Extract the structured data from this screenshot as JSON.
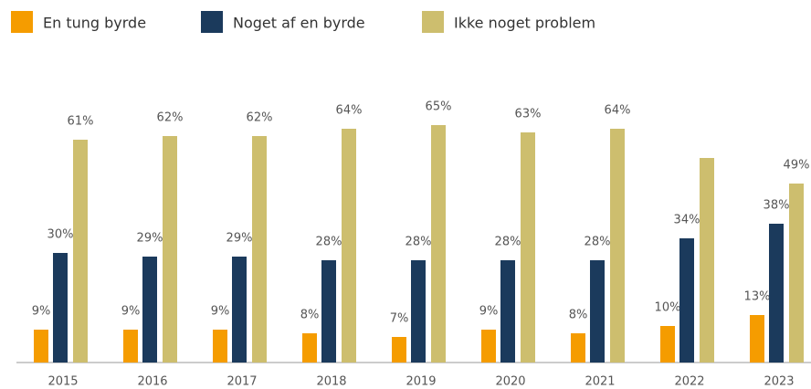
{
  "chart_data": {
    "type": "bar",
    "categories": [
      "2015",
      "2016",
      "2017",
      "2018",
      "2019",
      "2020",
      "2021",
      "2022",
      "2023"
    ],
    "series": [
      {
        "name": "En tung byrde",
        "color": "#f59c00",
        "values": [
          9,
          9,
          9,
          8,
          7,
          9,
          8,
          10,
          13
        ],
        "value_labels": [
          "9%",
          "9%",
          "9%",
          "8%",
          "7%",
          "9%",
          "8%",
          "10%",
          "13%"
        ]
      },
      {
        "name": "Noget af en byrde",
        "color": "#1b3a5c",
        "values": [
          30,
          29,
          29,
          28,
          28,
          28,
          28,
          34,
          38
        ],
        "value_labels": [
          "30%",
          "29%",
          "29%",
          "28%",
          "28%",
          "28%",
          "28%",
          "34%",
          "38%"
        ]
      },
      {
        "name": "Ikke noget problem",
        "color": "#cdbe6e",
        "values": [
          61,
          62,
          62,
          64,
          65,
          63,
          64,
          56,
          49
        ],
        "value_labels": [
          "61%",
          "62%",
          "62%",
          "64%",
          "65%",
          "63%",
          "64%",
          null,
          "49%"
        ]
      }
    ],
    "ylim": [
      0,
      70
    ],
    "legend": "top-left"
  }
}
